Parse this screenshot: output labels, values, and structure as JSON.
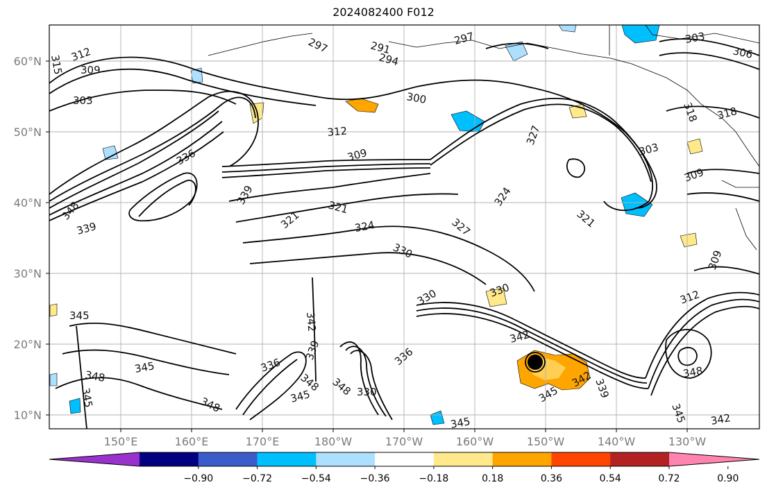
{
  "title": "2024082400 F012",
  "map": {
    "lat_ticks": [
      "10°N",
      "20°N",
      "30°N",
      "40°N",
      "50°N",
      "60°N"
    ],
    "lon_ticks": [
      "150°E",
      "160°E",
      "170°E",
      "180°W",
      "170°W",
      "160°W",
      "150°W",
      "140°W",
      "130°W"
    ],
    "contour_labels": [
      "315",
      "312",
      "309",
      "303",
      "297",
      "291",
      "294",
      "297",
      "303",
      "306",
      "300",
      "312",
      "309",
      "336",
      "318",
      "321",
      "324",
      "327",
      "321",
      "303",
      "309",
      "318",
      "321",
      "339",
      "348",
      "339",
      "324",
      "330",
      "327",
      "330",
      "345",
      "342",
      "348",
      "345",
      "345",
      "348",
      "336",
      "339",
      "348",
      "345",
      "348",
      "330",
      "336",
      "342",
      "345",
      "342",
      "339",
      "312",
      "348",
      "345",
      "342",
      "309",
      "345",
      "330"
    ]
  },
  "colorbar": {
    "labels": [
      "−0.90",
      "−0.72",
      "−0.54",
      "−0.36",
      "−0.18",
      "0.18",
      "0.36",
      "0.54",
      "0.72",
      "0.90"
    ],
    "colors": [
      "#9932cc",
      "#000080",
      "#3a5bc9",
      "#00bfff",
      "#addfff",
      "#ffffff",
      "#ffe98a",
      "#ffa500",
      "#ff4500",
      "#b22222",
      "#ff85b0"
    ]
  }
}
